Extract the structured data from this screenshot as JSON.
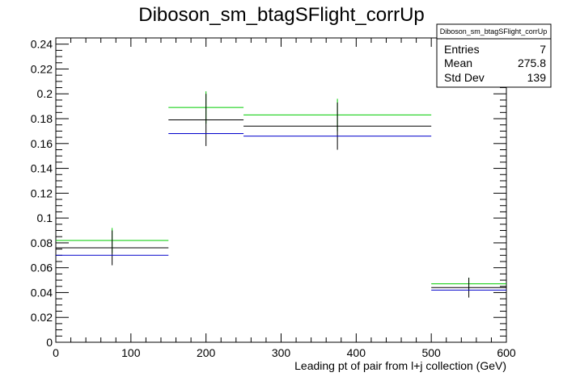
{
  "chart_data": {
    "type": "line",
    "title": "Diboson_sm_btagSFlight_corrUp",
    "xlabel": "Leading pt of pair from l+j collection (GeV)",
    "ylabel": "",
    "xlim": [
      0,
      600
    ],
    "ylim": [
      0,
      0.245
    ],
    "grid": false,
    "x_ticks": [
      0,
      100,
      200,
      300,
      400,
      500,
      600
    ],
    "x_tick_labels": [
      "0",
      "100",
      "200",
      "300",
      "400",
      "500",
      "600"
    ],
    "y_ticks": [
      0,
      0.02,
      0.04,
      0.06,
      0.08,
      0.1,
      0.12,
      0.14,
      0.16,
      0.18,
      0.2,
      0.22,
      0.24
    ],
    "y_tick_labels": [
      "0",
      "0.02",
      "0.04",
      "0.06",
      "0.08",
      "0.1",
      "0.12",
      "0.14",
      "0.16",
      "0.18",
      "0.2",
      "0.22",
      "0.24"
    ],
    "bins": [
      {
        "low": 0,
        "high": 150,
        "center": 75
      },
      {
        "low": 150,
        "high": 250,
        "center": 200
      },
      {
        "low": 250,
        "high": 500,
        "center": 375
      },
      {
        "low": 500,
        "high": 600,
        "center": 550
      }
    ],
    "series": [
      {
        "color": "#00cc00",
        "values": [
          0.082,
          0.189,
          0.183,
          0.047
        ],
        "errors": [
          0.01,
          0.013,
          0.013,
          0.005
        ]
      },
      {
        "color": "#000000",
        "values": [
          0.076,
          0.179,
          0.174,
          0.044
        ],
        "errors": [
          0.014,
          0.021,
          0.019,
          0.008
        ]
      },
      {
        "color": "#0000cc",
        "values": [
          0.07,
          0.168,
          0.166,
          0.042
        ],
        "errors": [
          0,
          0,
          0,
          0
        ]
      }
    ],
    "stats_box": {
      "title": "Diboson_sm_btagSFlight_corrUp",
      "rows": [
        {
          "label": "Entries",
          "value": "7"
        },
        {
          "label": "Mean",
          "value": "275.8"
        },
        {
          "label": "Std Dev",
          "value": "139"
        }
      ]
    }
  }
}
